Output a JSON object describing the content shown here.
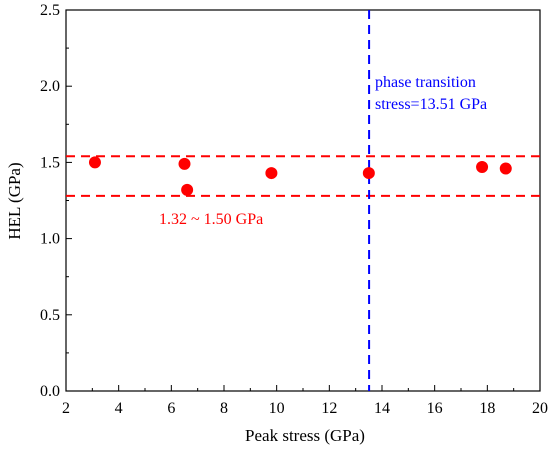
{
  "chart_data": {
    "type": "scatter",
    "xlabel": "Peak stress (GPa)",
    "ylabel": "HEL (GPa)",
    "xlim": [
      2,
      20
    ],
    "ylim": [
      0.0,
      2.5
    ],
    "xticks": [
      "2",
      "4",
      "6",
      "8",
      "10",
      "12",
      "14",
      "16",
      "18",
      "20"
    ],
    "yticks": [
      "0.0",
      "0.5",
      "1.0",
      "1.5",
      "2.0",
      "2.5"
    ],
    "grid": false,
    "series": [
      {
        "color": "#ff0000",
        "points": [
          {
            "x": 3.1,
            "y": 1.5
          },
          {
            "x": 6.5,
            "y": 1.49
          },
          {
            "x": 6.6,
            "y": 1.32
          },
          {
            "x": 9.8,
            "y": 1.43
          },
          {
            "x": 13.5,
            "y": 1.43
          },
          {
            "x": 17.8,
            "y": 1.47
          },
          {
            "x": 18.7,
            "y": 1.46
          }
        ]
      }
    ],
    "reference_lines": [
      {
        "orientation": "horizontal",
        "value": 1.54,
        "color": "#ff0000",
        "style": "dashed"
      },
      {
        "orientation": "horizontal",
        "value": 1.28,
        "color": "#ff0000",
        "style": "dashed"
      },
      {
        "orientation": "vertical",
        "value": 13.51,
        "color": "#0000ff",
        "style": "dashed"
      }
    ],
    "annotations": [
      {
        "text": "phase transition",
        "color": "#0000ff"
      },
      {
        "text": "stress=13.51 GPa",
        "color": "#0000ff"
      },
      {
        "text": "1.32 ~ 1.50 GPa",
        "color": "#ff0000"
      }
    ]
  }
}
